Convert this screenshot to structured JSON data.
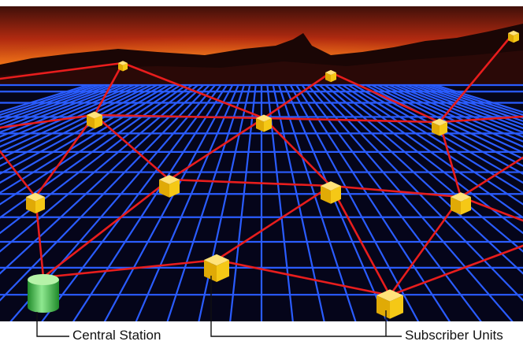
{
  "labels": {
    "central_station": "Central Station",
    "subscriber_units": "Subscriber Units"
  },
  "colors": {
    "sky_top": "#2a0a08",
    "sky_glow": "#ff9a1e",
    "mountains": "#1a0605",
    "ground": "#05051a",
    "grid": "#2a5cff",
    "link": "#e81d1d",
    "unit": "#f2c20f",
    "central": "#43c64a"
  },
  "icons": {
    "central": "green-cylinder-icon",
    "subscriber": "yellow-cube-icon"
  }
}
